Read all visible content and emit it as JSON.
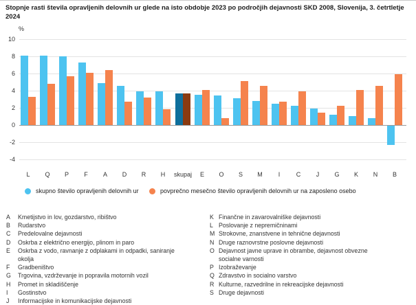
{
  "title": "Stopnje rasti števila opravljenih delovnih ur glede na isto obdobje 2023 po področjih dejavnosti SKD 2008, Slovenija, 3. četrtletje 2024",
  "chart_data": {
    "type": "bar",
    "title": "Stopnje rasti števila opravljenih delovnih ur glede na isto obdobje 2023 po področjih dejavnosti SKD 2008, Slovenija, 3. četrtletje 2024",
    "unit_label": "%",
    "categories": [
      "L",
      "Q",
      "P",
      "F",
      "A",
      "D",
      "R",
      "H",
      "skupaj",
      "E",
      "O",
      "S",
      "M",
      "I",
      "C",
      "J",
      "G",
      "K",
      "N",
      "B"
    ],
    "series": [
      {
        "name": "skupno število opravljenih delovnih ur",
        "color": "#4DC3F0",
        "values": [
          8.1,
          8.1,
          8.0,
          7.3,
          4.9,
          4.6,
          3.9,
          3.9,
          3.7,
          3.5,
          3.4,
          3.1,
          2.8,
          2.5,
          2.2,
          1.9,
          1.2,
          1.0,
          0.8,
          -2.2
        ]
      },
      {
        "name": "povprečno mesečno število opravljenih delovnih ur na zaposleno osebo",
        "color": "#F5834D",
        "values": [
          3.3,
          4.8,
          5.7,
          6.1,
          6.4,
          2.7,
          3.2,
          1.8,
          3.7,
          4.1,
          0.8,
          5.1,
          4.6,
          2.7,
          3.9,
          1.4,
          2.2,
          4.1,
          4.6,
          5.9
        ]
      }
    ],
    "highlight": {
      "category": "skupaj",
      "colors": [
        "#0E6F9C",
        "#8A3A10"
      ]
    },
    "xlabel": "",
    "ylabel": "%",
    "ylim": [
      -4,
      10
    ],
    "yticks": [
      10,
      8,
      6,
      4,
      2,
      0,
      -2,
      -4
    ],
    "grid": true,
    "legend_position": "bottom"
  },
  "footnotes": {
    "left": [
      {
        "code": "A",
        "label": "Kmetijstvo in lov, gozdarstvo, ribištvo"
      },
      {
        "code": "B",
        "label": "Rudarstvo"
      },
      {
        "code": "C",
        "label": "Predelovalne dejavnosti"
      },
      {
        "code": "D",
        "label": "Oskrba z električno energijo, plinom in paro"
      },
      {
        "code": "E",
        "label": "Oskrba z vodo, ravnanje z odplakami in odpadki, saniranje okolja"
      },
      {
        "code": "F",
        "label": "Gradbeništvo"
      },
      {
        "code": "G",
        "label": "Trgovina, vzdrževanje in popravila motornih vozil"
      },
      {
        "code": "H",
        "label": "Promet in skladiščenje"
      },
      {
        "code": "I",
        "label": "Gostinstvo"
      },
      {
        "code": "J",
        "label": "Informacijske in komunikacijske dejavnosti"
      }
    ],
    "right": [
      {
        "code": "K",
        "label": "Finančne in zavarovalniške dejavnosti"
      },
      {
        "code": "L",
        "label": "Poslovanje z nepremičninami"
      },
      {
        "code": "M",
        "label": "Strokovne, znanstvene in tehnične dejavnosti"
      },
      {
        "code": "N",
        "label": "Druge raznovrstne poslovne dejavnosti"
      },
      {
        "code": "O",
        "label": "Dejavnost javne uprave in obrambe, dejavnost obvezne socialne varnosti"
      },
      {
        "code": "P",
        "label": "Izobraževanje"
      },
      {
        "code": "Q",
        "label": "Zdravstvo in socialno varstvo"
      },
      {
        "code": "R",
        "label": "Kulturne, razvedrilne in rekreacijske dejavnosti"
      },
      {
        "code": "S",
        "label": "Druge dejavnosti"
      }
    ]
  }
}
